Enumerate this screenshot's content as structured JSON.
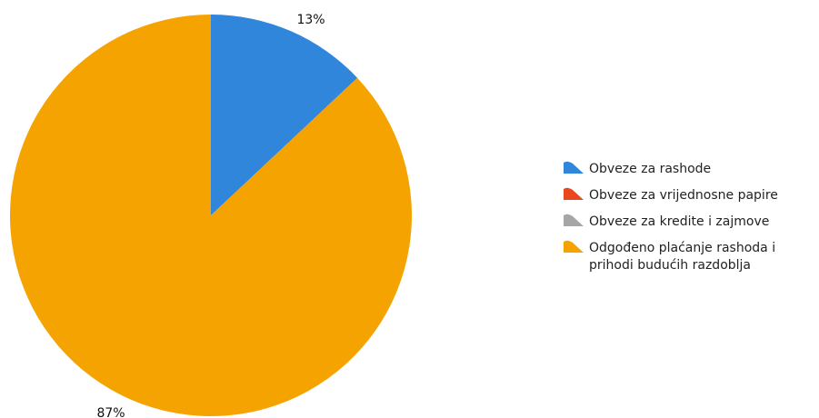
{
  "chart_data": {
    "type": "pie",
    "categories": [
      "Obveze za rashode",
      "Obveze za vrijednosne papire",
      "Obveze za kredite i zajmove",
      "Odgođeno plaćanje rashoda i prihodi budućih razdoblja"
    ],
    "values": [
      13,
      0,
      0,
      87
    ],
    "colors": [
      "#2f86db",
      "#e8481c",
      "#a6a6a6",
      "#f5a300"
    ],
    "data_labels": [
      "13%",
      "",
      "",
      "87%"
    ],
    "legend": {
      "placement": "right",
      "entries": [
        {
          "lines": [
            "Obveze za rashode"
          ],
          "color": "#2f86db"
        },
        {
          "lines": [
            "Obveze za vrijednosne papire"
          ],
          "color": "#e8481c"
        },
        {
          "lines": [
            "Obveze za kredite i zajmove"
          ],
          "color": "#a6a6a6"
        },
        {
          "lines": [
            "Odgođeno plaćanje rashoda i",
            "prihodi budućih razdoblja"
          ],
          "color": "#f5a300"
        }
      ]
    }
  }
}
